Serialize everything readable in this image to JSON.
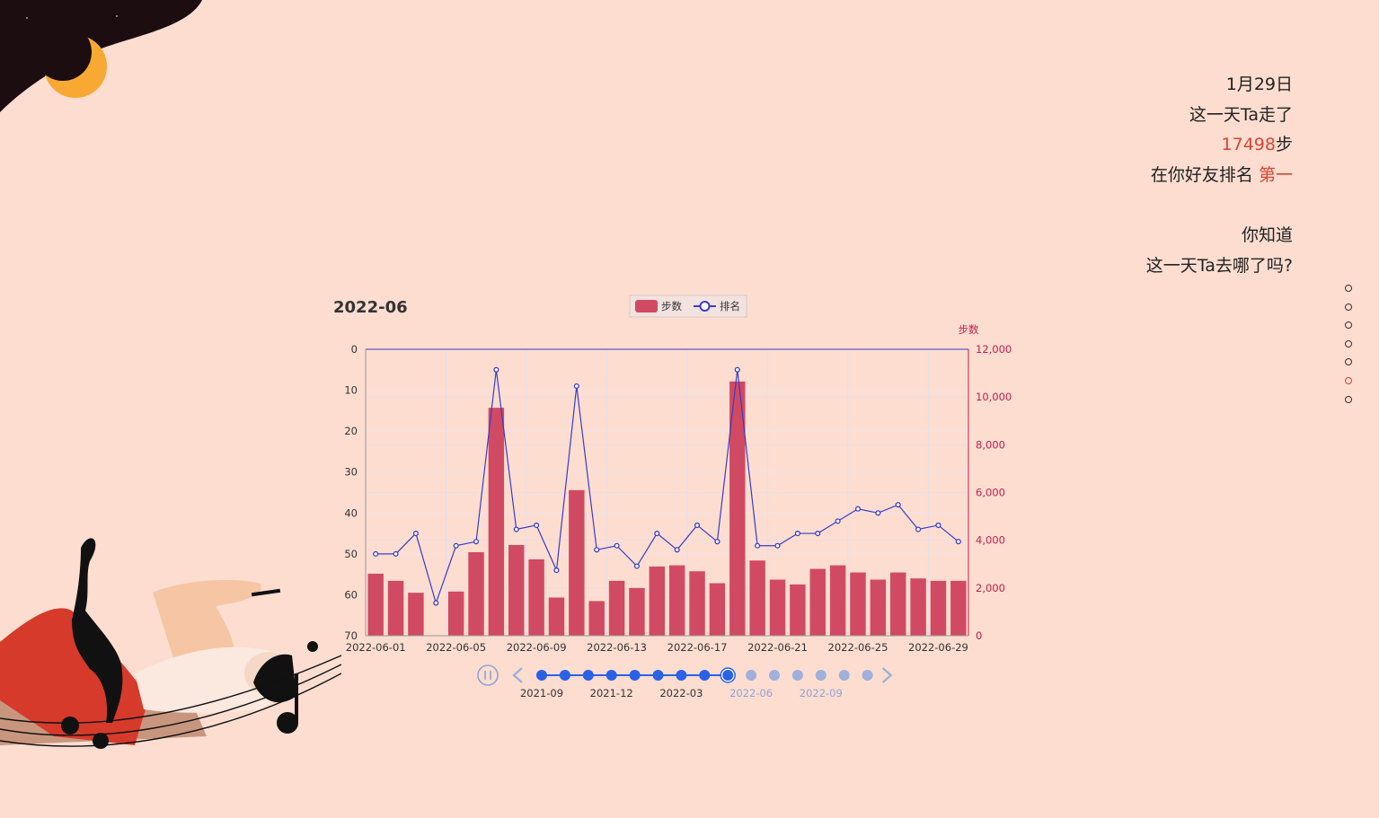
{
  "story": {
    "date": "1月29日",
    "line1": "这一天Ta走了",
    "steps_value": "17498",
    "steps_unit": "步",
    "rank_prefix": "在你好友排名",
    "rank_value": "第一",
    "question1": "你知道",
    "question2": "这一天Ta去哪了吗?"
  },
  "pager": {
    "count": 7,
    "active_index": 5
  },
  "colors": {
    "bar": "#d14a63",
    "line": "#3b3bc4",
    "accent": "#d64535",
    "timeline_active": "#2962e6",
    "timeline_inactive": "#9fb0da",
    "right_axis": "#c21f4d"
  },
  "timeline": {
    "labels": [
      "2021-09",
      "2021-12",
      "2022-03",
      "2022-06",
      "2022-09"
    ],
    "label_active": [
      true,
      true,
      true,
      false,
      false
    ],
    "points_total": 15,
    "current_index": 8,
    "icons": {
      "play": "pause-icon",
      "prev": "chevron-left-icon",
      "next": "chevron-right-icon"
    }
  },
  "chart_data": {
    "type": "bar",
    "title": "2022-06",
    "legend": [
      "步数",
      "排名"
    ],
    "legend_position": "top-center",
    "x": [
      "2022-06-01",
      "2022-06-02",
      "2022-06-03",
      "2022-06-04",
      "2022-06-05",
      "2022-06-06",
      "2022-06-07",
      "2022-06-08",
      "2022-06-09",
      "2022-06-10",
      "2022-06-11",
      "2022-06-12",
      "2022-06-13",
      "2022-06-14",
      "2022-06-15",
      "2022-06-16",
      "2022-06-17",
      "2022-06-18",
      "2022-06-19",
      "2022-06-20",
      "2022-06-21",
      "2022-06-22",
      "2022-06-23",
      "2022-06-24",
      "2022-06-25",
      "2022-06-26",
      "2022-06-27",
      "2022-06-28",
      "2022-06-29",
      "2022-06-30"
    ],
    "x_tick_labels": [
      "2022-06-01",
      "2022-06-05",
      "2022-06-09",
      "2022-06-13",
      "2022-06-17",
      "2022-06-21",
      "2022-06-25",
      "2022-06-29"
    ],
    "series": [
      {
        "name": "步数",
        "type": "bar",
        "axis": "right",
        "values": [
          2600,
          2300,
          1800,
          0,
          1850,
          3500,
          9550,
          3800,
          3200,
          1600,
          6100,
          1450,
          2300,
          2000,
          2900,
          2950,
          2700,
          2200,
          10650,
          3150,
          2350,
          2150,
          2800,
          2950,
          2650,
          2350,
          2650,
          2400,
          2300,
          2300
        ]
      },
      {
        "name": "排名",
        "type": "line",
        "axis": "left",
        "values": [
          50,
          50,
          45,
          62,
          48,
          47,
          5,
          44,
          43,
          54,
          9,
          49,
          48,
          53,
          45,
          49,
          43,
          47,
          5,
          48,
          48,
          45,
          45,
          42,
          39,
          40,
          38,
          44,
          43,
          47
        ]
      }
    ],
    "left_axis": {
      "ylim": [
        0,
        70
      ],
      "ticks": [
        0,
        10,
        20,
        30,
        40,
        50,
        60,
        70
      ],
      "inverse": true
    },
    "right_axis": {
      "label": "步数",
      "ylim": [
        0,
        12000
      ],
      "ticks": [
        "0",
        "2,000",
        "4,000",
        "6,000",
        "8,000",
        "10,000",
        "12,000"
      ]
    },
    "grid": true
  }
}
